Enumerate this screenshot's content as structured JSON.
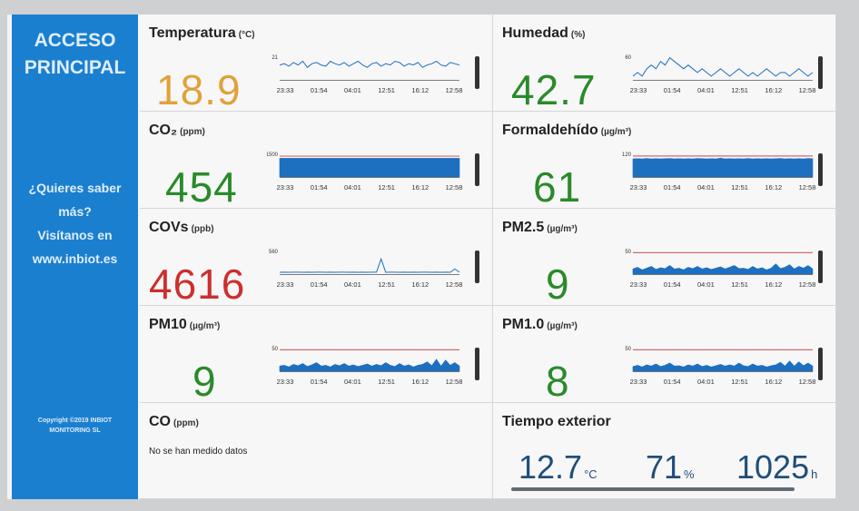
{
  "sidebar": {
    "title_line1": "ACCESO",
    "title_line2": "PRINCIPAL",
    "promo_line1": "¿Quieres saber",
    "promo_line2": "más?",
    "promo_line3": "Visítanos en",
    "promo_line4": "www.inbiot.es",
    "copyright_line1": "Copyright ©2019 INBIOT",
    "copyright_line2": "MONITORING SL"
  },
  "x_ticks": [
    "23:33",
    "01:54",
    "04:01",
    "12:51",
    "16:12",
    "12:58"
  ],
  "colors": {
    "blue_series": "#1d6fc0",
    "red_line": "#d26a6a",
    "green_value": "#2a8a2a",
    "orange_value": "#e0a23a",
    "red_value": "#cc2f2f"
  },
  "metrics": [
    {
      "id": "temperatura",
      "label": "Temperatura",
      "unit": "(°C)",
      "value": "18.9",
      "y_tick": "21",
      "value_color": "#e0a23a",
      "chart_type": "line",
      "series": [
        20.6,
        20.7,
        20.5,
        20.8,
        20.6,
        20.9,
        20.4,
        20.7,
        20.8,
        20.6,
        20.5,
        20.9,
        20.7,
        20.6,
        20.8,
        20.5,
        20.7,
        20.9,
        20.6,
        20.4,
        20.7,
        20.8,
        20.5,
        20.7,
        20.6,
        20.9,
        20.8,
        20.5,
        20.7,
        20.6,
        20.8,
        20.4,
        20.6,
        20.7,
        20.9,
        20.6,
        20.5,
        20.8,
        20.7,
        20.6
      ]
    },
    {
      "id": "humedad",
      "label": "Humedad",
      "unit": "(%)",
      "value": "42.7",
      "y_tick": "60",
      "value_color": "#2a8a2a",
      "chart_type": "line",
      "series": [
        52,
        53,
        52,
        54,
        55,
        54,
        56,
        55,
        57,
        56,
        55,
        54,
        55,
        54,
        53,
        54,
        53,
        52,
        53,
        54,
        53,
        52,
        53,
        54,
        53,
        52,
        53,
        52,
        53,
        54,
        53,
        52,
        53,
        53,
        52,
        53,
        54,
        53,
        52,
        53
      ]
    },
    {
      "id": "co2",
      "label": "CO₂",
      "unit": "(ppm)",
      "value": "454",
      "y_tick": "1500",
      "value_color": "#2a8a2a",
      "chart_type": "area",
      "threshold": 1500,
      "ymax": 1700,
      "series": [
        1350,
        1350,
        1350,
        1350,
        1350,
        1350,
        1350,
        1350,
        1350,
        1350,
        1350,
        1350,
        1350,
        1350,
        1350,
        1350,
        1350,
        1350,
        1350,
        1350,
        1350,
        1350,
        1350,
        1350,
        1350,
        1350,
        1350,
        1350,
        1350,
        1350,
        1350,
        1350,
        1350,
        1350,
        1350,
        1350,
        1350,
        1350,
        1350,
        1350
      ]
    },
    {
      "id": "formaldehido",
      "label": "Formaldehído",
      "unit": "(µg/m³)",
      "value": "61",
      "y_tick": "120",
      "value_color": "#2a8a2a",
      "chart_type": "area",
      "threshold": 120,
      "ymax": 135,
      "series": [
        104,
        105,
        104,
        106,
        104,
        105,
        104,
        105,
        106,
        104,
        105,
        104,
        105,
        104,
        106,
        105,
        104,
        105,
        104,
        108,
        104,
        105,
        104,
        105,
        104,
        106,
        104,
        105,
        104,
        105,
        104,
        105,
        106,
        104,
        105,
        104,
        105,
        104,
        106,
        105
      ]
    },
    {
      "id": "covs",
      "label": "COVs",
      "unit": "(ppb)",
      "value": "4616",
      "y_tick": "560",
      "value_color": "#cc2f2f",
      "chart_type": "line",
      "ymax": 1400,
      "series": [
        110,
        112,
        110,
        111,
        112,
        110,
        111,
        110,
        112,
        111,
        110,
        112,
        110,
        111,
        112,
        110,
        111,
        110,
        112,
        110,
        111,
        112,
        900,
        110,
        111,
        112,
        110,
        111,
        110,
        112,
        110,
        111,
        112,
        110,
        111,
        110,
        112,
        110,
        300,
        111
      ]
    },
    {
      "id": "pm25",
      "label": "PM2.5",
      "unit": "(µg/m³)",
      "value": "9",
      "y_tick": "50",
      "value_color": "#2a8a2a",
      "chart_type": "area",
      "threshold": 50,
      "ymax": 55,
      "series": [
        12,
        16,
        10,
        14,
        18,
        11,
        15,
        13,
        20,
        12,
        14,
        10,
        16,
        13,
        18,
        12,
        15,
        11,
        14,
        17,
        12,
        16,
        20,
        13,
        14,
        11,
        18,
        12,
        15,
        10,
        14,
        24,
        13,
        16,
        22,
        12,
        18,
        14,
        20,
        12
      ]
    },
    {
      "id": "pm10",
      "label": "PM10",
      "unit": "(µg/m³)",
      "value": "9",
      "y_tick": "50",
      "value_color": "#2a8a2a",
      "chart_type": "area",
      "threshold": 50,
      "ymax": 55,
      "series": [
        12,
        14,
        10,
        16,
        13,
        18,
        11,
        15,
        20,
        12,
        14,
        10,
        16,
        13,
        18,
        12,
        15,
        11,
        14,
        17,
        12,
        16,
        13,
        20,
        14,
        11,
        18,
        12,
        15,
        10,
        14,
        16,
        22,
        13,
        28,
        12,
        26,
        14,
        20,
        12
      ]
    },
    {
      "id": "pm1",
      "label": "PM1.0",
      "unit": "(µg/m³)",
      "value": "8",
      "y_tick": "50",
      "value_color": "#2a8a2a",
      "chart_type": "area",
      "threshold": 50,
      "ymax": 55,
      "series": [
        11,
        14,
        10,
        15,
        12,
        17,
        11,
        14,
        19,
        12,
        13,
        10,
        15,
        12,
        17,
        11,
        14,
        10,
        13,
        16,
        12,
        15,
        12,
        19,
        13,
        11,
        17,
        12,
        14,
        10,
        13,
        15,
        21,
        12,
        24,
        12,
        22,
        13,
        19,
        12
      ]
    }
  ],
  "co": {
    "label": "CO",
    "unit": "(ppm)",
    "message": "No se han medido datos"
  },
  "tiempo": {
    "label": "Tiempo exterior",
    "temp_value": "12.7",
    "temp_unit": "°C",
    "humidity_value": "71",
    "humidity_unit": "%",
    "pressure_value": "1025",
    "pressure_unit": "h"
  }
}
